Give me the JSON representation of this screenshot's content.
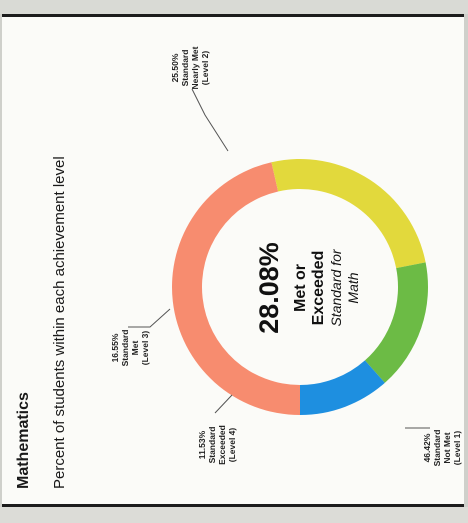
{
  "subject": "Mathematics",
  "subtitle": "Percent of students within each achievement level",
  "center": {
    "value": "28.08%",
    "line1": "Met or",
    "line2": "Exceeded",
    "line3": "Standard for",
    "line4": "Math"
  },
  "chart_data": {
    "type": "pie",
    "donut": true,
    "title": "Mathematics",
    "subtitle": "Percent of students within each achievement level",
    "categories": [
      "Standard Not Met (Level 1)",
      "Standard Nearly Met (Level 2)",
      "Standard Met (Level 3)",
      "Standard Exceeded (Level 4)"
    ],
    "values": [
      46.42,
      25.5,
      16.55,
      11.53
    ],
    "colors": [
      "#f78c6f",
      "#e2d93c",
      "#6cbb45",
      "#1e8fe0"
    ],
    "labels": [
      {
        "pct": "46.42%",
        "lines": [
          "Standard",
          "Not Met",
          "(Level 1)"
        ]
      },
      {
        "pct": "25.50%",
        "lines": [
          "Standard",
          "Nearly Met",
          "(Level 2)"
        ]
      },
      {
        "pct": "16.55%",
        "lines": [
          "Standard",
          "Met",
          "(Level 3)"
        ]
      },
      {
        "pct": "11.53%",
        "lines": [
          "Standard",
          "Exceeded",
          "(Level 4)"
        ]
      }
    ],
    "center_value": "28.08%",
    "orientation": "rotated 90° counter-clockwise"
  }
}
